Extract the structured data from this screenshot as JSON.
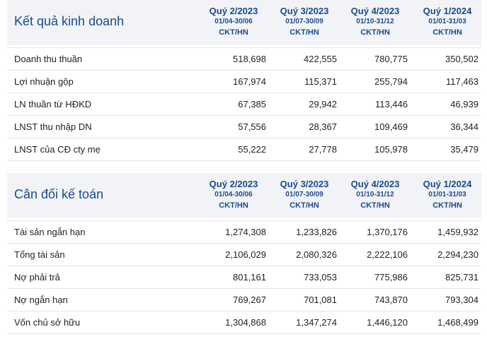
{
  "income": {
    "title": "Kết quả kinh doanh",
    "periods": [
      {
        "label": "Quý 2/2023",
        "range": "01/04-30/06",
        "unit": "CKT/HN"
      },
      {
        "label": "Quý 3/2023",
        "range": "01/07-30/09",
        "unit": "CKT/HN"
      },
      {
        "label": "Quý 4/2023",
        "range": "01/10-31/12",
        "unit": "CKT/HN"
      },
      {
        "label": "Quý 1/2024",
        "range": "01/01-31/03",
        "unit": "CKT/HN"
      }
    ],
    "rows": [
      {
        "label": "Doanh thu thuần",
        "values": [
          "518,698",
          "422,555",
          "780,775",
          "350,502"
        ]
      },
      {
        "label": "Lợi nhuận gộp",
        "values": [
          "167,974",
          "115,371",
          "255,794",
          "117,463"
        ]
      },
      {
        "label": "LN thuần từ HĐKD",
        "values": [
          "67,385",
          "29,942",
          "113,446",
          "46,939"
        ]
      },
      {
        "label": "LNST thu nhập DN",
        "values": [
          "57,556",
          "28,367",
          "109,469",
          "36,344"
        ]
      },
      {
        "label": "LNST của CĐ cty mẹ",
        "values": [
          "55,222",
          "27,778",
          "105,978",
          "35,479"
        ]
      }
    ]
  },
  "balance": {
    "title": "Cân đối kế toán",
    "periods": [
      {
        "label": "Quý 2/2023",
        "range": "01/04-30/06",
        "unit": "CKT/HN"
      },
      {
        "label": "Quý 3/2023",
        "range": "01/07-30/09",
        "unit": "CKT/HN"
      },
      {
        "label": "Quý 4/2023",
        "range": "01/10-31/12",
        "unit": "CKT/HN"
      },
      {
        "label": "Quý 1/2024",
        "range": "01/01-31/03",
        "unit": "CKT/HN"
      }
    ],
    "rows": [
      {
        "label": "Tài sản ngắn hạn",
        "values": [
          "1,274,308",
          "1,233,826",
          "1,370,176",
          "1,459,932"
        ]
      },
      {
        "label": "Tổng tài sản",
        "values": [
          "2,106,029",
          "2,080,326",
          "2,222,106",
          "2,294,230"
        ]
      },
      {
        "label": "Nợ phải trả",
        "values": [
          "801,161",
          "733,053",
          "775,986",
          "825,731"
        ]
      },
      {
        "label": "Nợ ngắn hạn",
        "values": [
          "769,267",
          "701,081",
          "743,870",
          "793,304"
        ]
      },
      {
        "label": "Vốn chủ sở hữu",
        "values": [
          "1,304,868",
          "1,347,274",
          "1,446,120",
          "1,468,499"
        ]
      }
    ]
  }
}
